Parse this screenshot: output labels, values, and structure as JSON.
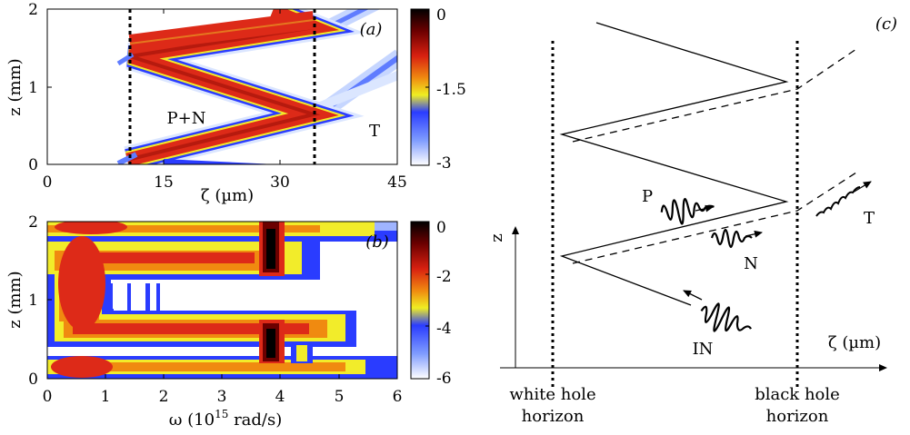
{
  "panel_a": {
    "tag": "(a)",
    "xlabel": "ζ (µm)",
    "ylabel": "z (mm)",
    "xticks": [
      "0",
      "15",
      "30",
      "45"
    ],
    "yticks": [
      "0",
      "1",
      "2"
    ],
    "label_pn": "P+N",
    "label_t": "T",
    "colorbar_ticks": [
      "0",
      "-1.5",
      "-3"
    ]
  },
  "panel_b": {
    "tag": "(b)",
    "xlabel_main": "ω (10",
    "xlabel_sup": "15",
    "xlabel_unit": " rad/s)",
    "ylabel": "z (mm)",
    "xticks": [
      "0",
      "1",
      "2",
      "3",
      "4",
      "5",
      "6"
    ],
    "yticks": [
      "0",
      "1",
      "2"
    ],
    "colorbar_ticks": [
      "0",
      "-2",
      "-4",
      "-6"
    ]
  },
  "panel_c": {
    "tag": "(c)",
    "z_axis": "z",
    "zeta_axis": "ζ (µm)",
    "white_hole": [
      "white hole",
      "horizon"
    ],
    "black_hole": [
      "black hole",
      "horizon"
    ],
    "label_p": "P",
    "label_n": "N",
    "label_t": "T",
    "label_in": "IN"
  },
  "colors": {
    "hot": "#8b0a0a",
    "red": "#dd2a18",
    "yellow": "#f2ec2a",
    "blue": "#2a3cff",
    "pale_blue": "#bcd2ff"
  }
}
